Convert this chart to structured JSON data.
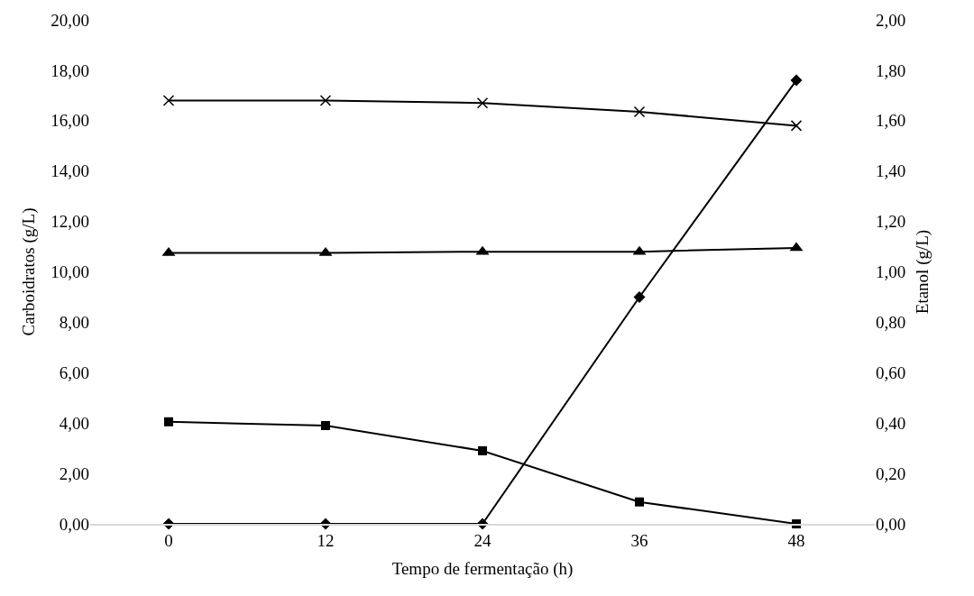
{
  "chart_data": {
    "type": "line",
    "xlabel": "Tempo de fermentação (h)",
    "ylabel": "Carboidratos (g/L)",
    "y2label": "Etanol (g/L)",
    "categories": [
      "0",
      "12",
      "24",
      "36",
      "48"
    ],
    "ylim": [
      0,
      20
    ],
    "yticks": [
      {
        "value": 0,
        "label": "0,00"
      },
      {
        "value": 2,
        "label": "2,00"
      },
      {
        "value": 4,
        "label": "4,00"
      },
      {
        "value": 6,
        "label": "6,00"
      },
      {
        "value": 8,
        "label": "8,00"
      },
      {
        "value": 10,
        "label": "10,00"
      },
      {
        "value": 12,
        "label": "12,00"
      },
      {
        "value": 14,
        "label": "14,00"
      },
      {
        "value": 16,
        "label": "16,00"
      },
      {
        "value": 18,
        "label": "18,00"
      },
      {
        "value": 20,
        "label": "20,00"
      }
    ],
    "y2lim": [
      0,
      2
    ],
    "y2ticks": [
      {
        "value": 0,
        "label": "0,00"
      },
      {
        "value": 0.2,
        "label": "0,20"
      },
      {
        "value": 0.4,
        "label": "0,40"
      },
      {
        "value": 0.6,
        "label": "0,60"
      },
      {
        "value": 0.8,
        "label": "0,80"
      },
      {
        "value": 1,
        "label": "1,00"
      },
      {
        "value": 1.2,
        "label": "1,20"
      },
      {
        "value": 1.4,
        "label": "1,40"
      },
      {
        "value": 1.6,
        "label": "1,60"
      },
      {
        "value": 1.8,
        "label": "1,80"
      },
      {
        "value": 2,
        "label": "2,00"
      }
    ],
    "grid": false,
    "line_style": "solid",
    "series": [
      {
        "color": "#000000",
        "marker": "cross",
        "values": [
          16.8,
          16.8,
          16.7,
          16.35,
          15.8
        ]
      },
      {
        "color": "#000000",
        "marker": "triangle",
        "values": [
          10.75,
          10.75,
          10.8,
          10.8,
          10.95
        ]
      },
      {
        "color": "#000000",
        "marker": "square",
        "values": [
          4.05,
          3.9,
          2.9,
          0.87,
          0
        ]
      },
      {
        "color": "#000000",
        "marker": "diamond",
        "axis": "y2",
        "values": [
          0,
          0,
          0,
          0.9,
          1.76
        ]
      }
    ]
  }
}
